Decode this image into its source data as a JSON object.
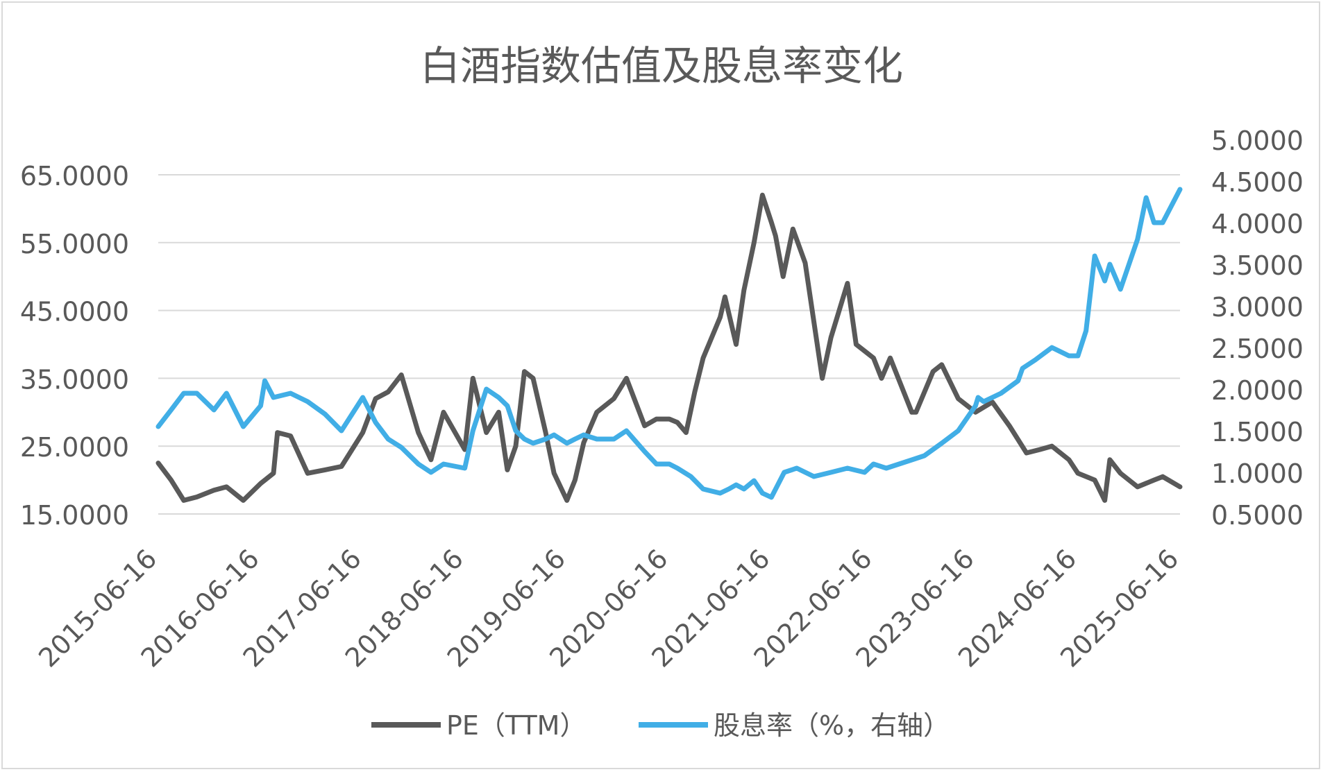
{
  "chart_data": {
    "type": "line",
    "title": "白酒指数估值及股息率变化",
    "x_tick_labels": [
      "2015-06-16",
      "2016-06-16",
      "2017-06-16",
      "2018-06-16",
      "2019-06-16",
      "2020-06-16",
      "2021-06-16",
      "2022-06-16",
      "2023-06-16",
      "2024-06-16",
      "2025-06-16"
    ],
    "y_left": {
      "ticks": [
        "15.0000",
        "25.0000",
        "35.0000",
        "45.0000",
        "55.0000",
        "65.0000"
      ],
      "range": [
        15,
        65
      ]
    },
    "y_right": {
      "ticks": [
        "0.5000",
        "1.0000",
        "1.5000",
        "2.0000",
        "2.5000",
        "3.0000",
        "3.5000",
        "4.0000",
        "4.5000",
        "5.0000"
      ],
      "range": [
        0.5,
        5.0
      ]
    },
    "grid": "horizontal",
    "legend_position": "bottom",
    "series": [
      {
        "name": "PE（TTM）",
        "axis": "left",
        "color": "#595959",
        "x": [
          "2015-06-16",
          "2015-08-01",
          "2015-09-15",
          "2015-11-01",
          "2016-01-01",
          "2016-02-15",
          "2016-04-15",
          "2016-06-16",
          "2016-08-01",
          "2016-08-15",
          "2016-10-01",
          "2016-12-01",
          "2017-02-01",
          "2017-04-01",
          "2017-06-16",
          "2017-08-01",
          "2017-09-15",
          "2017-11-01",
          "2018-01-01",
          "2018-02-15",
          "2018-04-01",
          "2018-06-16",
          "2018-07-15",
          "2018-09-01",
          "2018-10-15",
          "2018-11-15",
          "2018-12-15",
          "2019-01-15",
          "2019-02-15",
          "2019-04-01",
          "2019-05-01",
          "2019-06-16",
          "2019-07-15",
          "2019-08-15",
          "2019-10-01",
          "2019-12-01",
          "2020-01-15",
          "2020-03-20",
          "2020-05-01",
          "2020-06-16",
          "2020-07-15",
          "2020-08-15",
          "2020-09-15",
          "2020-10-15",
          "2020-12-15",
          "2021-01-01",
          "2021-02-10",
          "2021-03-10",
          "2021-04-15",
          "2021-05-15",
          "2021-06-16",
          "2021-07-01",
          "2021-07-28",
          "2021-09-01",
          "2021-10-15",
          "2021-12-15",
          "2022-01-15",
          "2022-03-15",
          "2022-04-15",
          "2022-06-16",
          "2022-07-15",
          "2022-08-15",
          "2022-10-31",
          "2022-11-15",
          "2023-01-15",
          "2023-02-15",
          "2023-04-15",
          "2023-06-16",
          "2023-08-15",
          "2023-10-15",
          "2023-12-15",
          "2024-02-01",
          "2024-03-15",
          "2024-05-15",
          "2024-06-16",
          "2024-08-15",
          "2024-09-20",
          "2024-10-08",
          "2024-11-15",
          "2025-01-15",
          "2025-03-15",
          "2025-04-15",
          "2025-06-16"
        ],
        "values": [
          22.5,
          20.0,
          17.0,
          17.5,
          18.5,
          19.0,
          17.0,
          19.5,
          21.0,
          27.0,
          26.5,
          21.0,
          21.5,
          22.0,
          27.0,
          32.0,
          33.0,
          35.5,
          27.0,
          23.0,
          30.0,
          24.5,
          35.0,
          27.0,
          30.0,
          21.5,
          25.0,
          36.0,
          35.0,
          27.0,
          21.0,
          17.0,
          20.0,
          25.5,
          30.0,
          32.0,
          35.0,
          28.0,
          29.0,
          29.0,
          28.5,
          27.0,
          33.0,
          38.0,
          44.0,
          47.0,
          40.0,
          48.0,
          55.0,
          62.0,
          58.0,
          56.0,
          50.0,
          57.0,
          52.0,
          35.0,
          41.0,
          49.0,
          40.0,
          38.0,
          35.0,
          38.0,
          30.0,
          30.0,
          36.0,
          37.0,
          32.0,
          30.0,
          31.5,
          28.0,
          24.0,
          24.5,
          25.0,
          23.0,
          21.0,
          20.0,
          17.0,
          23.0,
          21.0,
          19.0,
          20.0,
          20.5,
          19.0
        ]
      },
      {
        "name": "股息率（%，右轴）",
        "axis": "right",
        "color": "#41aee6",
        "x": [
          "2015-06-16",
          "2015-08-01",
          "2015-09-15",
          "2015-11-01",
          "2016-01-01",
          "2016-02-15",
          "2016-04-15",
          "2016-06-16",
          "2016-07-01",
          "2016-08-01",
          "2016-10-01",
          "2016-12-01",
          "2017-02-01",
          "2017-04-01",
          "2017-06-16",
          "2017-08-01",
          "2017-09-15",
          "2017-11-01",
          "2018-01-01",
          "2018-02-15",
          "2018-04-01",
          "2018-06-16",
          "2018-07-15",
          "2018-09-01",
          "2018-10-15",
          "2018-11-15",
          "2018-12-15",
          "2019-01-15",
          "2019-02-15",
          "2019-04-01",
          "2019-05-01",
          "2019-06-16",
          "2019-07-15",
          "2019-08-15",
          "2019-10-01",
          "2019-12-01",
          "2020-01-15",
          "2020-03-20",
          "2020-05-01",
          "2020-06-16",
          "2020-07-15",
          "2020-09-01",
          "2020-10-15",
          "2020-12-15",
          "2021-01-15",
          "2021-02-10",
          "2021-03-10",
          "2021-04-15",
          "2021-05-15",
          "2021-06-16",
          "2021-08-01",
          "2021-09-15",
          "2021-11-15",
          "2022-01-15",
          "2022-03-15",
          "2022-05-15",
          "2022-06-16",
          "2022-08-01",
          "2022-10-31",
          "2022-12-15",
          "2023-02-15",
          "2023-04-15",
          "2023-06-16",
          "2023-06-25",
          "2023-07-15",
          "2023-09-15",
          "2023-11-15",
          "2023-12-01",
          "2024-01-15",
          "2024-03-15",
          "2024-05-15",
          "2024-06-16",
          "2024-07-15",
          "2024-08-15",
          "2024-09-20",
          "2024-10-08",
          "2024-11-15",
          "2025-01-15",
          "2025-02-15",
          "2025-03-15",
          "2025-04-15",
          "2025-06-16"
        ],
        "values": [
          1.55,
          1.75,
          1.95,
          1.95,
          1.75,
          1.95,
          1.55,
          1.8,
          2.1,
          1.9,
          1.95,
          1.85,
          1.7,
          1.5,
          1.9,
          1.6,
          1.4,
          1.3,
          1.1,
          1.0,
          1.1,
          1.05,
          1.5,
          2.0,
          1.9,
          1.8,
          1.5,
          1.4,
          1.35,
          1.4,
          1.45,
          1.35,
          1.4,
          1.45,
          1.4,
          1.4,
          1.5,
          1.25,
          1.1,
          1.1,
          1.05,
          0.95,
          0.8,
          0.75,
          0.8,
          0.85,
          0.8,
          0.9,
          0.75,
          0.7,
          1.0,
          1.05,
          0.95,
          1.0,
          1.05,
          1.0,
          1.1,
          1.05,
          1.15,
          1.2,
          1.35,
          1.5,
          1.8,
          1.9,
          1.85,
          1.95,
          2.1,
          2.25,
          2.35,
          2.5,
          2.4,
          2.4,
          2.7,
          3.6,
          3.3,
          3.5,
          3.2,
          3.8,
          4.3,
          4.0,
          4.0,
          4.4
        ]
      }
    ]
  }
}
